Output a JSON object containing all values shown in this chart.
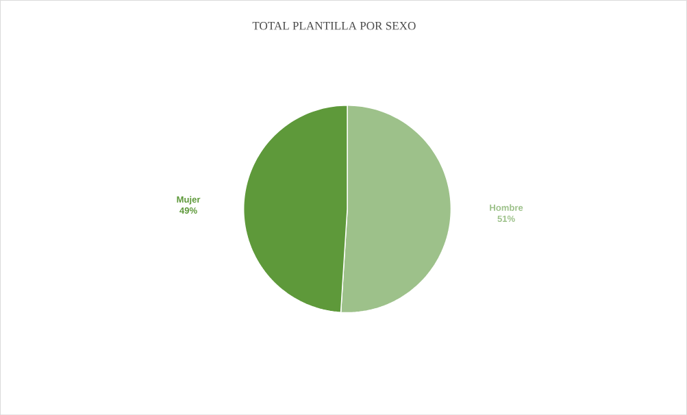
{
  "chart_data": {
    "type": "pie",
    "title": "TOTAL PLANTILLA POR SEXO",
    "categories": [
      "Hombre",
      "Mujer"
    ],
    "values": [
      51,
      49
    ],
    "value_labels": [
      "51%",
      "49%"
    ],
    "colors": [
      "#9dc18a",
      "#5e993a"
    ]
  }
}
